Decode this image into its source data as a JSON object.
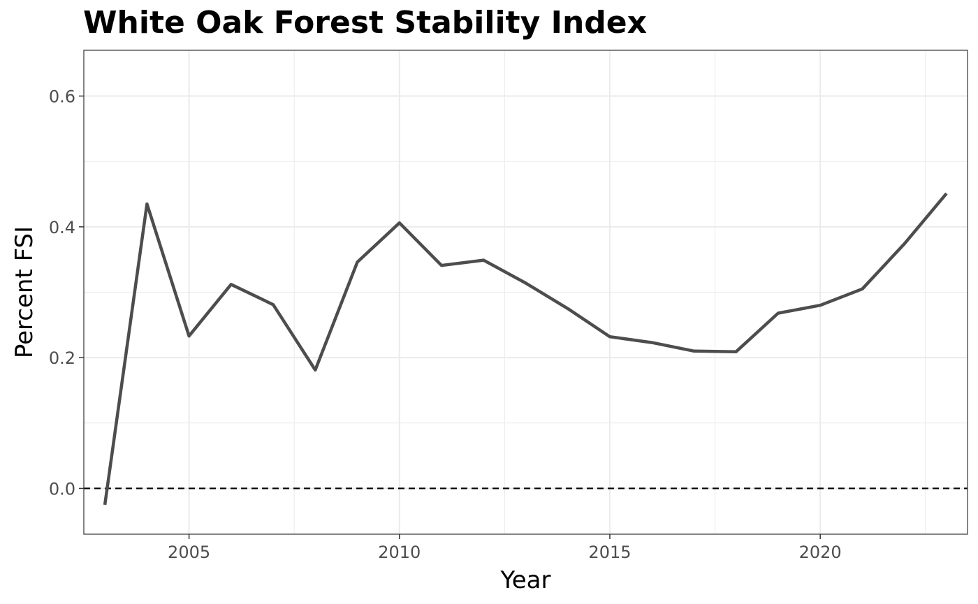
{
  "chart_data": {
    "type": "line",
    "title": "White Oak Forest Stability Index",
    "xlabel": "Year",
    "ylabel": "Percent FSI",
    "xlim": [
      2002.5,
      2023.5
    ],
    "ylim": [
      -0.07,
      0.67
    ],
    "x_ticks": [
      2005,
      2010,
      2015,
      2020
    ],
    "y_ticks": [
      0.0,
      0.2,
      0.4,
      0.6
    ],
    "x_tick_labels": [
      "2005",
      "2010",
      "2015",
      "2020"
    ],
    "y_tick_labels": [
      "0.0",
      "0.2",
      "0.4",
      "0.6"
    ],
    "grid": true,
    "reference_line": {
      "y": 0.0,
      "style": "dashed",
      "color": "#000000"
    },
    "series": [
      {
        "color": "#4d4d4d",
        "x": [
          2003,
          2004,
          2005,
          2006,
          2007,
          2008,
          2009,
          2010,
          2011,
          2012,
          2013,
          2014,
          2015,
          2016,
          2017,
          2018,
          2019,
          2020,
          2021,
          2022,
          2023
        ],
        "y": [
          -0.025,
          0.435,
          0.233,
          0.312,
          0.281,
          0.181,
          0.346,
          0.406,
          0.341,
          0.349,
          0.314,
          0.275,
          0.232,
          0.223,
          0.21,
          0.209,
          0.268,
          0.28,
          0.305,
          0.374,
          0.451
        ]
      }
    ]
  }
}
